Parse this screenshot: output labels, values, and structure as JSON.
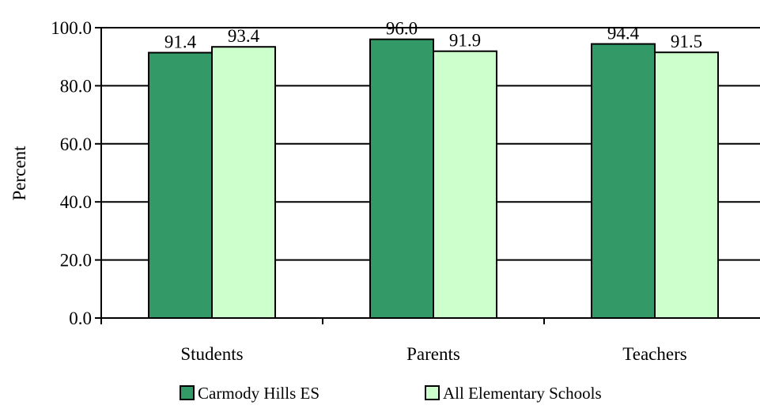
{
  "chart_data": {
    "type": "bar",
    "categories": [
      "Students",
      "Parents",
      "Teachers"
    ],
    "series": [
      {
        "name": "Carmody Hills ES",
        "values": [
          91.4,
          96.0,
          94.4
        ],
        "color": "#339966"
      },
      {
        "name": "All Elementary Schools",
        "values": [
          93.4,
          91.9,
          91.5
        ],
        "color": "#CCFFCC"
      }
    ],
    "title": "",
    "xlabel": "",
    "ylabel": "Percent",
    "ylim": [
      0,
      100
    ],
    "yticks": [
      0,
      20,
      40,
      60,
      80,
      100
    ],
    "ytick_labels": [
      "0.0",
      "20.0",
      "40.0",
      "60.0",
      "80.0",
      "100.0"
    ],
    "data_labels": [
      [
        "91.4",
        "96.0",
        "94.4"
      ],
      [
        "93.4",
        "91.9",
        "91.5"
      ]
    ],
    "grid": true,
    "legend_position": "bottom"
  }
}
